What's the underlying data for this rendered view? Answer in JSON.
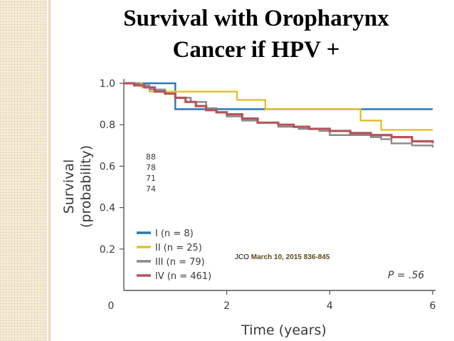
{
  "slide": {
    "title_line1": "Survival with Oropharynx",
    "title_line2": "Cancer if HPV +",
    "credit_prefix": "JCO ",
    "credit_date": "March 10, 2015 836-845"
  },
  "colors": {
    "stage_I": "#2a77b5",
    "stage_II": "#e3bf2f",
    "stage_III": "#8a8a8a",
    "stage_IV": "#b5545a",
    "side_strip": "#f6edd9"
  },
  "chart_data": {
    "type": "line",
    "step": true,
    "xlabel": "Time (years)",
    "ylabel_line1": "Survival",
    "ylabel_line2": "(probability)",
    "xlim": [
      0,
      6
    ],
    "ylim": [
      0,
      1.0
    ],
    "x_ticks": [
      0,
      2,
      4,
      6
    ],
    "x_tick_labels": [
      "0",
      "2",
      "4",
      "6"
    ],
    "y_ticks": [
      0.2,
      0.4,
      0.6,
      0.8,
      1.0
    ],
    "y_tick_labels": [
      "0.2",
      "0.4",
      "0.6",
      "0.8",
      "1.0"
    ],
    "grid": false,
    "legend_position": "bottom-left",
    "p_value": "P = .56",
    "side_numbers": [
      "88",
      "78",
      "71",
      "74"
    ],
    "series": [
      {
        "name": "I (n = 8)",
        "x": [
          0,
          1.0,
          1.0,
          6.0
        ],
        "y": [
          1.0,
          1.0,
          0.875,
          0.875
        ]
      },
      {
        "name": "II (n = 25)",
        "x": [
          0,
          0.35,
          0.35,
          0.5,
          0.5,
          2.2,
          2.2,
          2.75,
          2.75,
          4.6,
          4.6,
          5.0,
          5.0,
          6.0
        ],
        "y": [
          1.0,
          1.0,
          0.98,
          0.98,
          0.96,
          0.96,
          0.92,
          0.92,
          0.875,
          0.875,
          0.82,
          0.82,
          0.775,
          0.775
        ]
      },
      {
        "name": "III (n = 79)",
        "x": [
          0,
          0.3,
          0.5,
          0.8,
          1.0,
          1.3,
          1.6,
          1.8,
          2.0,
          2.3,
          2.6,
          3.0,
          3.4,
          3.8,
          4.0,
          4.3,
          4.8,
          5.0,
          5.2,
          5.6,
          6.0
        ],
        "y": [
          1.0,
          0.99,
          0.97,
          0.95,
          0.93,
          0.91,
          0.88,
          0.86,
          0.84,
          0.82,
          0.81,
          0.79,
          0.78,
          0.77,
          0.75,
          0.75,
          0.74,
          0.73,
          0.71,
          0.7,
          0.69
        ]
      },
      {
        "name": "IV (n = 461)",
        "x": [
          0,
          0.2,
          0.4,
          0.6,
          0.8,
          1.0,
          1.2,
          1.4,
          1.6,
          1.8,
          2.0,
          2.3,
          2.6,
          3.0,
          3.3,
          3.6,
          4.0,
          4.4,
          4.8,
          5.2,
          5.6,
          6.0
        ],
        "y": [
          1.0,
          0.99,
          0.98,
          0.96,
          0.95,
          0.93,
          0.91,
          0.89,
          0.87,
          0.86,
          0.85,
          0.83,
          0.81,
          0.8,
          0.79,
          0.78,
          0.77,
          0.76,
          0.75,
          0.74,
          0.72,
          0.71
        ]
      }
    ]
  }
}
